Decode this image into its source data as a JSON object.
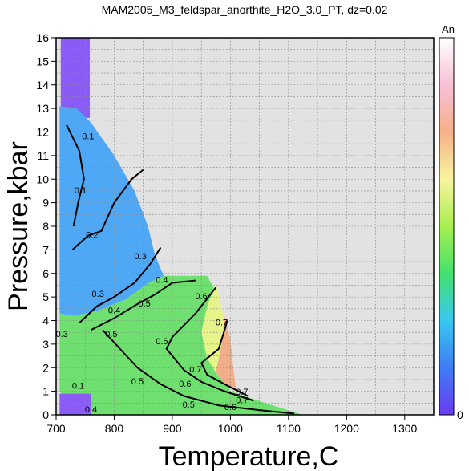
{
  "chart_data": {
    "type": "heatmap",
    "title": "MAM2005_M3_feldspar_anorthite_H2O_3.0_PT, dz=0.02",
    "xlabel": "Temperature,C",
    "ylabel": "Pressure,kbar",
    "xlim": [
      700,
      1350
    ],
    "ylim": [
      0,
      16
    ],
    "x_ticks": [
      700,
      800,
      900,
      1000,
      1100,
      1200,
      1300
    ],
    "y_ticks": [
      0,
      1,
      2,
      3,
      4,
      5,
      6,
      7,
      8,
      9,
      10,
      11,
      12,
      13,
      14,
      15,
      16
    ],
    "grid": true,
    "background_color": "#e2e2e2",
    "colorbar": {
      "label": "An",
      "min_label": "0",
      "position": "right",
      "colors": [
        "#6a3cf0",
        "#3f7cf5",
        "#39c8f0",
        "#45e06e",
        "#a8ef50",
        "#f8f4a0",
        "#f5b08a",
        "#f8c0d8",
        "#ffffff"
      ]
    },
    "regions": [
      {
        "name": "low-An strip",
        "color": "#8a5cf5",
        "polygon": [
          [
            708,
            16
          ],
          [
            758,
            16
          ],
          [
            758,
            12.6
          ],
          [
            708,
            12.6
          ]
        ]
      },
      {
        "name": "blue field",
        "color": "#4fa8f5",
        "polygon": [
          [
            706,
            13.1
          ],
          [
            735,
            13.0
          ],
          [
            760,
            12.4
          ],
          [
            800,
            11.0
          ],
          [
            835,
            9.5
          ],
          [
            858,
            8.0
          ],
          [
            870,
            6.8
          ],
          [
            885,
            5.9
          ],
          [
            860,
            5.6
          ],
          [
            820,
            4.9
          ],
          [
            770,
            4.4
          ],
          [
            730,
            4.2
          ],
          [
            706,
            4.3
          ]
        ]
      },
      {
        "name": "green field",
        "color": "#6fe070",
        "polygon": [
          [
            706,
            4.3
          ],
          [
            730,
            4.2
          ],
          [
            770,
            4.4
          ],
          [
            820,
            4.9
          ],
          [
            860,
            5.6
          ],
          [
            885,
            5.9
          ],
          [
            960,
            5.9
          ],
          [
            980,
            5.0
          ],
          [
            985,
            3.0
          ],
          [
            990,
            1.5
          ],
          [
            1000,
            1.0
          ],
          [
            1060,
            0.5
          ],
          [
            1125,
            0.0
          ],
          [
            745,
            0.0
          ],
          [
            720,
            0.5
          ],
          [
            706,
            1.0
          ]
        ]
      },
      {
        "name": "yellow field",
        "color": "#e6f48a",
        "polygon": [
          [
            975,
            5.6
          ],
          [
            990,
            4.0
          ],
          [
            995,
            2.5
          ],
          [
            980,
            1.6
          ],
          [
            960,
            2.4
          ],
          [
            950,
            3.5
          ],
          [
            960,
            4.6
          ]
        ]
      },
      {
        "name": "salmon field",
        "color": "#f2ae88",
        "polygon": [
          [
            990,
            4.2
          ],
          [
            1000,
            3.2
          ],
          [
            1005,
            2.0
          ],
          [
            1010,
            1.0
          ],
          [
            995,
            1.2
          ],
          [
            975,
            1.8
          ],
          [
            985,
            3.0
          ]
        ]
      },
      {
        "name": "purple base",
        "color": "#8a5cf5",
        "polygon": [
          [
            706,
            0
          ],
          [
            760,
            0
          ],
          [
            760,
            0.9
          ],
          [
            706,
            0.9
          ]
        ]
      }
    ],
    "contours": [
      {
        "level": "0.1",
        "points": [
          [
            718,
            12.3
          ],
          [
            740,
            11.2
          ],
          [
            748,
            10.0
          ],
          [
            738,
            9.0
          ],
          [
            730,
            8.0
          ]
        ]
      },
      {
        "level": "0.2",
        "points": [
          [
            728,
            7.0
          ],
          [
            755,
            7.6
          ],
          [
            778,
            7.8
          ],
          [
            800,
            9.0
          ],
          [
            830,
            10.0
          ],
          [
            850,
            10.4
          ]
        ]
      },
      {
        "level": "0.3",
        "points": [
          [
            740,
            3.9
          ],
          [
            770,
            4.6
          ],
          [
            800,
            5.0
          ],
          [
            835,
            5.6
          ],
          [
            862,
            6.4
          ],
          [
            880,
            7.1
          ]
        ]
      },
      {
        "level": "0.4",
        "points": [
          [
            760,
            3.6
          ],
          [
            800,
            4.1
          ],
          [
            840,
            4.7
          ],
          [
            870,
            5.1
          ],
          [
            900,
            5.6
          ],
          [
            940,
            5.7
          ]
        ]
      },
      {
        "level": "0.5",
        "points": [
          [
            780,
            3.6
          ],
          [
            810,
            2.8
          ],
          [
            840,
            2.0
          ],
          [
            880,
            1.3
          ],
          [
            920,
            0.8
          ],
          [
            980,
            0.4
          ],
          [
            1050,
            0.2
          ],
          [
            1110,
            0.05
          ]
        ]
      },
      {
        "level": "0.6",
        "points": [
          [
            975,
            5.4
          ],
          [
            940,
            4.3
          ],
          [
            900,
            3.3
          ],
          [
            890,
            2.8
          ],
          [
            920,
            1.9
          ],
          [
            950,
            1.4
          ],
          [
            990,
            1.0
          ],
          [
            1040,
            0.6
          ]
        ]
      },
      {
        "level": "0.7",
        "points": [
          [
            995,
            4.0
          ],
          [
            980,
            2.8
          ],
          [
            950,
            2.2
          ],
          [
            960,
            1.7
          ],
          [
            990,
            1.3
          ],
          [
            1030,
            0.8
          ]
        ]
      }
    ],
    "contour_labels": [
      {
        "text": "0.1",
        "x": 755,
        "y": 11.7
      },
      {
        "text": "0.1",
        "x": 742,
        "y": 9.4
      },
      {
        "text": "0.2",
        "x": 762,
        "y": 7.5
      },
      {
        "text": "0.3",
        "x": 845,
        "y": 6.6
      },
      {
        "text": "0.3",
        "x": 772,
        "y": 5.0
      },
      {
        "text": "0.4",
        "x": 800,
        "y": 4.3
      },
      {
        "text": "0.4",
        "x": 882,
        "y": 5.6
      },
      {
        "text": "0.5",
        "x": 852,
        "y": 4.6
      },
      {
        "text": "0.5",
        "x": 795,
        "y": 3.3
      },
      {
        "text": "0.5",
        "x": 840,
        "y": 1.3
      },
      {
        "text": "0.5",
        "x": 928,
        "y": 0.3
      },
      {
        "text": "0.6",
        "x": 950,
        "y": 4.9
      },
      {
        "text": "0.6",
        "x": 882,
        "y": 3.0
      },
      {
        "text": "0.6",
        "x": 922,
        "y": 1.2
      },
      {
        "text": "0.6",
        "x": 1000,
        "y": 0.2
      },
      {
        "text": "0.7",
        "x": 985,
        "y": 3.8
      },
      {
        "text": "0.7",
        "x": 940,
        "y": 1.8
      },
      {
        "text": "0.7",
        "x": 1020,
        "y": 0.5
      },
      {
        "text": "0.7",
        "x": 1020,
        "y": 0.85
      },
      {
        "text": "0.3",
        "x": 710,
        "y": 3.3
      },
      {
        "text": "0.1",
        "x": 738,
        "y": 1.1
      },
      {
        "text": "0.4",
        "x": 760,
        "y": 0.1
      }
    ]
  }
}
